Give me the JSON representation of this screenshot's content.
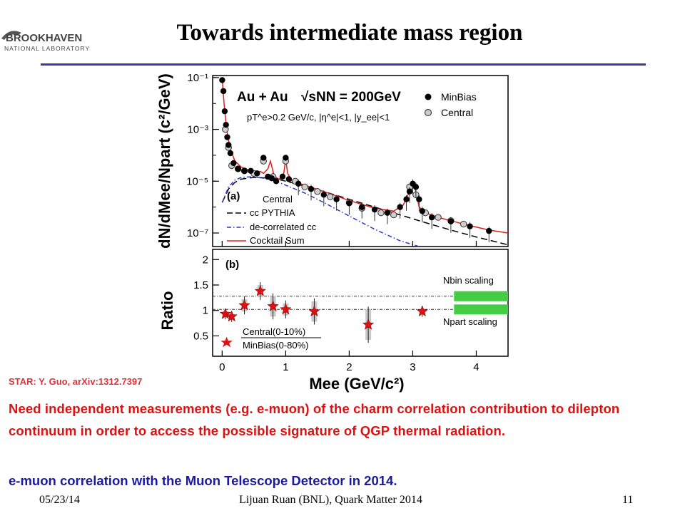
{
  "slide": {
    "title": "Towards intermediate mass region",
    "citation": "STAR: Y. Guo, arXiv:1312.7397",
    "text_red": "Need independent measurements (e.g. e-muon) of the charm correlation contribution to dilepton continuum in order to access the possible signature of QGP thermal radiation.",
    "text_blue": "e-muon correlation with the Muon Telescope Detector in 2014.",
    "footer_date": "05/23/14",
    "footer_center": "Lijuan Ruan (BNL), Quark Matter 2014",
    "footer_page": "11",
    "logo_top": "BROOKHAVEN",
    "logo_bottom": "NATIONAL LABORATORY"
  },
  "colors": {
    "title_rule": "#3a3aa8",
    "text_red": "#e01010",
    "text_blue": "#1a1aa0",
    "cocktail": "#e02020",
    "decorrelated": "#2a3ac8",
    "scaling_band": "#44cc44",
    "ratio_star": "#e01010"
  },
  "chart_data": [
    {
      "type": "scatter",
      "panel": "(a)",
      "ylabel": "dN/dMee/Npart (c²/GeV)",
      "xlim": [
        -0.15,
        4.5
      ],
      "ylim": [
        3e-08,
        0.12
      ],
      "yscale": "log",
      "y_ticks": [
        "10⁻¹",
        "10⁻³",
        "10⁻⁵",
        "10⁻⁷"
      ],
      "annotation_collision": "Au + Au",
      "annotation_energy": "√sNN = 200GeV",
      "annotation_cuts": "pT^e>0.2 GeV/c, |η^e|<1, |y_ee|<1",
      "legend_markers": [
        {
          "label": "MinBias",
          "marker": "filled-circle"
        },
        {
          "label": "Central",
          "marker": "open-circle"
        }
      ],
      "legend_lines_title": "Central",
      "legend_lines": [
        {
          "label": "cc PYTHIA",
          "style": "dashed",
          "color": "#000000"
        },
        {
          "label": "de-correlated cc",
          "style": "dash-dot",
          "color": "#2a3ac8"
        },
        {
          "label": "Cocktail Sum",
          "style": "solid",
          "color": "#e02020"
        }
      ],
      "series": [
        {
          "name": "MinBias",
          "x": [
            0.0,
            0.02,
            0.04,
            0.06,
            0.08,
            0.1,
            0.13,
            0.18,
            0.25,
            0.35,
            0.45,
            0.55,
            0.65,
            0.72,
            0.78,
            0.85,
            0.95,
            1.0,
            1.05,
            1.2,
            1.4,
            1.6,
            1.8,
            2.0,
            2.2,
            2.4,
            2.6,
            2.8,
            2.9,
            2.95,
            3.0,
            3.05,
            3.1,
            3.15,
            3.3,
            3.6,
            3.9,
            4.2
          ],
          "y": [
            0.08,
            0.03,
            0.005,
            0.0015,
            0.0005,
            0.00025,
            0.00012,
            5e-05,
            3e-05,
            2.5e-05,
            2.5e-05,
            2e-05,
            8e-05,
            1.5e-05,
            1.3e-05,
            1e-05,
            1.5e-05,
            8e-05,
            1.2e-05,
            8e-06,
            5e-06,
            3e-06,
            2e-06,
            1.4e-06,
            1e-06,
            8e-07,
            6e-07,
            1e-06,
            2e-06,
            4e-06,
            8e-06,
            6e-06,
            2e-06,
            7e-07,
            4e-07,
            2.8e-07,
            1.8e-07,
            1.2e-07
          ]
        },
        {
          "name": "Central",
          "x": [
            0.05,
            0.1,
            0.15,
            0.25,
            0.35,
            0.5,
            0.65,
            0.8,
            1.0,
            1.15,
            1.3,
            1.5,
            1.7,
            2.0,
            2.2,
            2.5,
            2.7,
            2.95,
            3.05,
            3.2,
            3.4,
            3.6,
            3.8
          ],
          "y": [
            0.001,
            0.0002,
            4e-05,
            3e-05,
            2.5e-05,
            2e-05,
            6e-05,
            1.5e-05,
            6e-05,
            1e-05,
            6e-06,
            4e-06,
            2.5e-06,
            1.5e-06,
            9e-07,
            6e-07,
            5e-07,
            6e-06,
            3e-06,
            6e-07,
            4e-07,
            3e-07,
            2.2e-07
          ]
        },
        {
          "name": "Cocktail Sum",
          "x": [
            0.0,
            0.03,
            0.07,
            0.12,
            0.2,
            0.3,
            0.45,
            0.55,
            0.6,
            0.65,
            0.72,
            0.76,
            0.79,
            0.82,
            0.9,
            0.97,
            1.0,
            1.03,
            1.1,
            1.3,
            1.6,
            2.0,
            2.4,
            2.7,
            2.85,
            2.95,
            3.0,
            3.05,
            3.1,
            3.2,
            3.4,
            3.8,
            4.2,
            4.5
          ],
          "y": [
            0.09,
            0.01,
            0.001,
            0.0002,
            6e-05,
            3.5e-05,
            2.5e-05,
            2.2e-05,
            2.4e-05,
            2e-05,
            3e-05,
            6e-05,
            3e-05,
            1.5e-05,
            1.2e-05,
            2e-05,
            7e-05,
            2e-05,
            1e-05,
            7e-06,
            4e-06,
            1.8e-06,
            9e-07,
            7e-07,
            1.2e-06,
            4e-06,
            1e-05,
            4e-06,
            1e-06,
            6e-07,
            4e-07,
            2.2e-07,
            1.3e-07,
            1e-07
          ]
        },
        {
          "name": "cc PYTHIA",
          "x": [
            0.0,
            0.1,
            0.2,
            0.3,
            0.5,
            0.8,
            1.0,
            1.3,
            1.6,
            2.0,
            2.4,
            2.8,
            3.2,
            3.6,
            4.0,
            4.5
          ],
          "y": [
            1.5e-06,
            5e-06,
            9e-06,
            1.2e-05,
            1.4e-05,
            1.3e-05,
            1e-05,
            6.5e-06,
            4e-06,
            2e-06,
            1e-06,
            5e-07,
            2.5e-07,
            1.3e-07,
            7e-08,
            3.5e-08
          ]
        },
        {
          "name": "de-correlated cc",
          "x": [
            0.0,
            0.1,
            0.2,
            0.3,
            0.5,
            0.8,
            1.0,
            1.3,
            1.6,
            2.0,
            2.4,
            2.8,
            3.1
          ],
          "y": [
            1.5e-06,
            6e-06,
            1.1e-05,
            1.4e-05,
            1.5e-05,
            1.1e-05,
            7e-06,
            3.5e-06,
            1.5e-06,
            4.5e-07,
            1.4e-07,
            5e-08,
            3e-08
          ]
        }
      ]
    },
    {
      "type": "scatter",
      "panel": "(b)",
      "ylabel": "Ratio",
      "xlabel": "Mee (GeV/c²)",
      "xlim": [
        -0.15,
        4.5
      ],
      "ylim": [
        0.1,
        2.2
      ],
      "x_ticks": [
        0,
        1,
        2,
        3,
        4
      ],
      "y_ticks": [
        0.5,
        1,
        1.5,
        2
      ],
      "legend_lines": [
        {
          "label": "Central(0-10%)",
          "style": "marker",
          "color": "#e01010"
        },
        {
          "label": "MinBias(0-80%)",
          "style": "marker",
          "color": "#e01010"
        }
      ],
      "scaling_labels": [
        {
          "label": "Nbin scaling",
          "y": 1.28
        },
        {
          "label": "Npart scaling",
          "y": 1.02
        }
      ],
      "series": [
        {
          "name": "Central(0-10%)/MinBias(0-80%)",
          "x": [
            0.05,
            0.15,
            0.35,
            0.6,
            0.8,
            1.0,
            1.45,
            2.3,
            3.15
          ],
          "y": [
            0.93,
            0.88,
            1.1,
            1.38,
            1.08,
            1.02,
            0.98,
            0.72,
            0.98
          ],
          "err": [
            0.05,
            0.05,
            0.12,
            0.12,
            0.2,
            0.12,
            0.2,
            0.3,
            0.05
          ]
        }
      ]
    }
  ]
}
